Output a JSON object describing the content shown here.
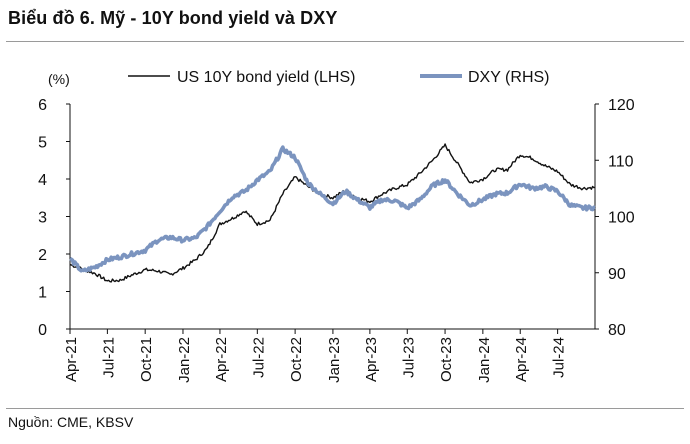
{
  "title": "Biểu đồ 6. Mỹ - 10Y bond yield và DXY",
  "source": "Nguồn: CME, KBSV",
  "chart_data": {
    "type": "line",
    "left_axis_unit": "(%)",
    "ylim_left": [
      0,
      6
    ],
    "yticks_left": [
      "0",
      "1",
      "2",
      "3",
      "4",
      "5",
      "6"
    ],
    "ylim_right": [
      80,
      120
    ],
    "yticks_right": [
      "80",
      "90",
      "100",
      "110",
      "120"
    ],
    "x_range": [
      "2021-04-01",
      "2024-09-30"
    ],
    "x_ticks": [
      "Apr-21",
      "Jul-21",
      "Oct-21",
      "Jan-22",
      "Apr-22",
      "Jul-22",
      "Oct-22",
      "Jan-23",
      "Apr-23",
      "Jul-23",
      "Oct-23",
      "Jan-24",
      "Apr-24",
      "Jul-24"
    ],
    "grid": false,
    "legend_position": "top",
    "series": [
      {
        "name": "US 10Y bond yield (LHS)",
        "axis": "left",
        "color": "#111111",
        "x": [
          "2021-04-01",
          "2021-05-01",
          "2021-06-01",
          "2021-07-01",
          "2021-08-01",
          "2021-09-01",
          "2021-10-01",
          "2021-11-01",
          "2021-12-01",
          "2022-01-01",
          "2022-02-01",
          "2022-03-01",
          "2022-04-01",
          "2022-05-01",
          "2022-06-01",
          "2022-07-01",
          "2022-08-01",
          "2022-09-01",
          "2022-10-01",
          "2022-11-01",
          "2022-12-01",
          "2023-01-01",
          "2023-02-01",
          "2023-03-01",
          "2023-04-01",
          "2023-05-01",
          "2023-06-01",
          "2023-07-01",
          "2023-08-01",
          "2023-09-01",
          "2023-10-01",
          "2023-11-01",
          "2023-12-01",
          "2024-01-01",
          "2024-02-01",
          "2024-03-01",
          "2024-04-01",
          "2024-05-01",
          "2024-06-01",
          "2024-07-01",
          "2024-08-01",
          "2024-09-01",
          "2024-09-30"
        ],
        "values": [
          1.72,
          1.6,
          1.48,
          1.28,
          1.3,
          1.45,
          1.58,
          1.55,
          1.45,
          1.62,
          1.85,
          2.15,
          2.8,
          2.95,
          3.15,
          2.8,
          2.9,
          3.6,
          4.05,
          3.8,
          3.6,
          3.5,
          3.7,
          3.5,
          3.4,
          3.6,
          3.75,
          3.85,
          4.15,
          4.5,
          4.9,
          4.4,
          3.9,
          4.0,
          4.25,
          4.25,
          4.65,
          4.55,
          4.35,
          4.2,
          3.85,
          3.75,
          3.78
        ]
      },
      {
        "name": "DXY (RHS)",
        "axis": "right",
        "color": "#7b94bf",
        "x": [
          "2021-04-01",
          "2021-05-01",
          "2021-06-01",
          "2021-07-01",
          "2021-08-01",
          "2021-09-01",
          "2021-10-01",
          "2021-11-01",
          "2021-12-01",
          "2022-01-01",
          "2022-02-01",
          "2022-03-01",
          "2022-04-01",
          "2022-05-01",
          "2022-06-01",
          "2022-07-01",
          "2022-08-01",
          "2022-09-01",
          "2022-10-01",
          "2022-11-01",
          "2022-12-01",
          "2023-01-01",
          "2023-02-01",
          "2023-03-01",
          "2023-04-01",
          "2023-05-01",
          "2023-06-01",
          "2023-07-01",
          "2023-08-01",
          "2023-09-01",
          "2023-10-01",
          "2023-11-01",
          "2023-12-01",
          "2024-01-01",
          "2024-02-01",
          "2024-03-01",
          "2024-04-01",
          "2024-05-01",
          "2024-06-01",
          "2024-07-01",
          "2024-08-01",
          "2024-09-01",
          "2024-09-30"
        ],
        "values": [
          92.5,
          90.2,
          91.0,
          92.3,
          92.8,
          93.4,
          94.0,
          95.8,
          96.3,
          95.8,
          96.2,
          98.2,
          101.0,
          103.5,
          104.5,
          106.5,
          108.0,
          112.0,
          110.5,
          106.0,
          104.0,
          102.3,
          104.5,
          103.0,
          101.6,
          103.0,
          102.8,
          101.5,
          103.0,
          105.5,
          106.5,
          104.0,
          102.0,
          103.0,
          104.0,
          104.2,
          105.8,
          105.0,
          105.3,
          104.5,
          102.0,
          101.5,
          101.6
        ]
      }
    ]
  }
}
